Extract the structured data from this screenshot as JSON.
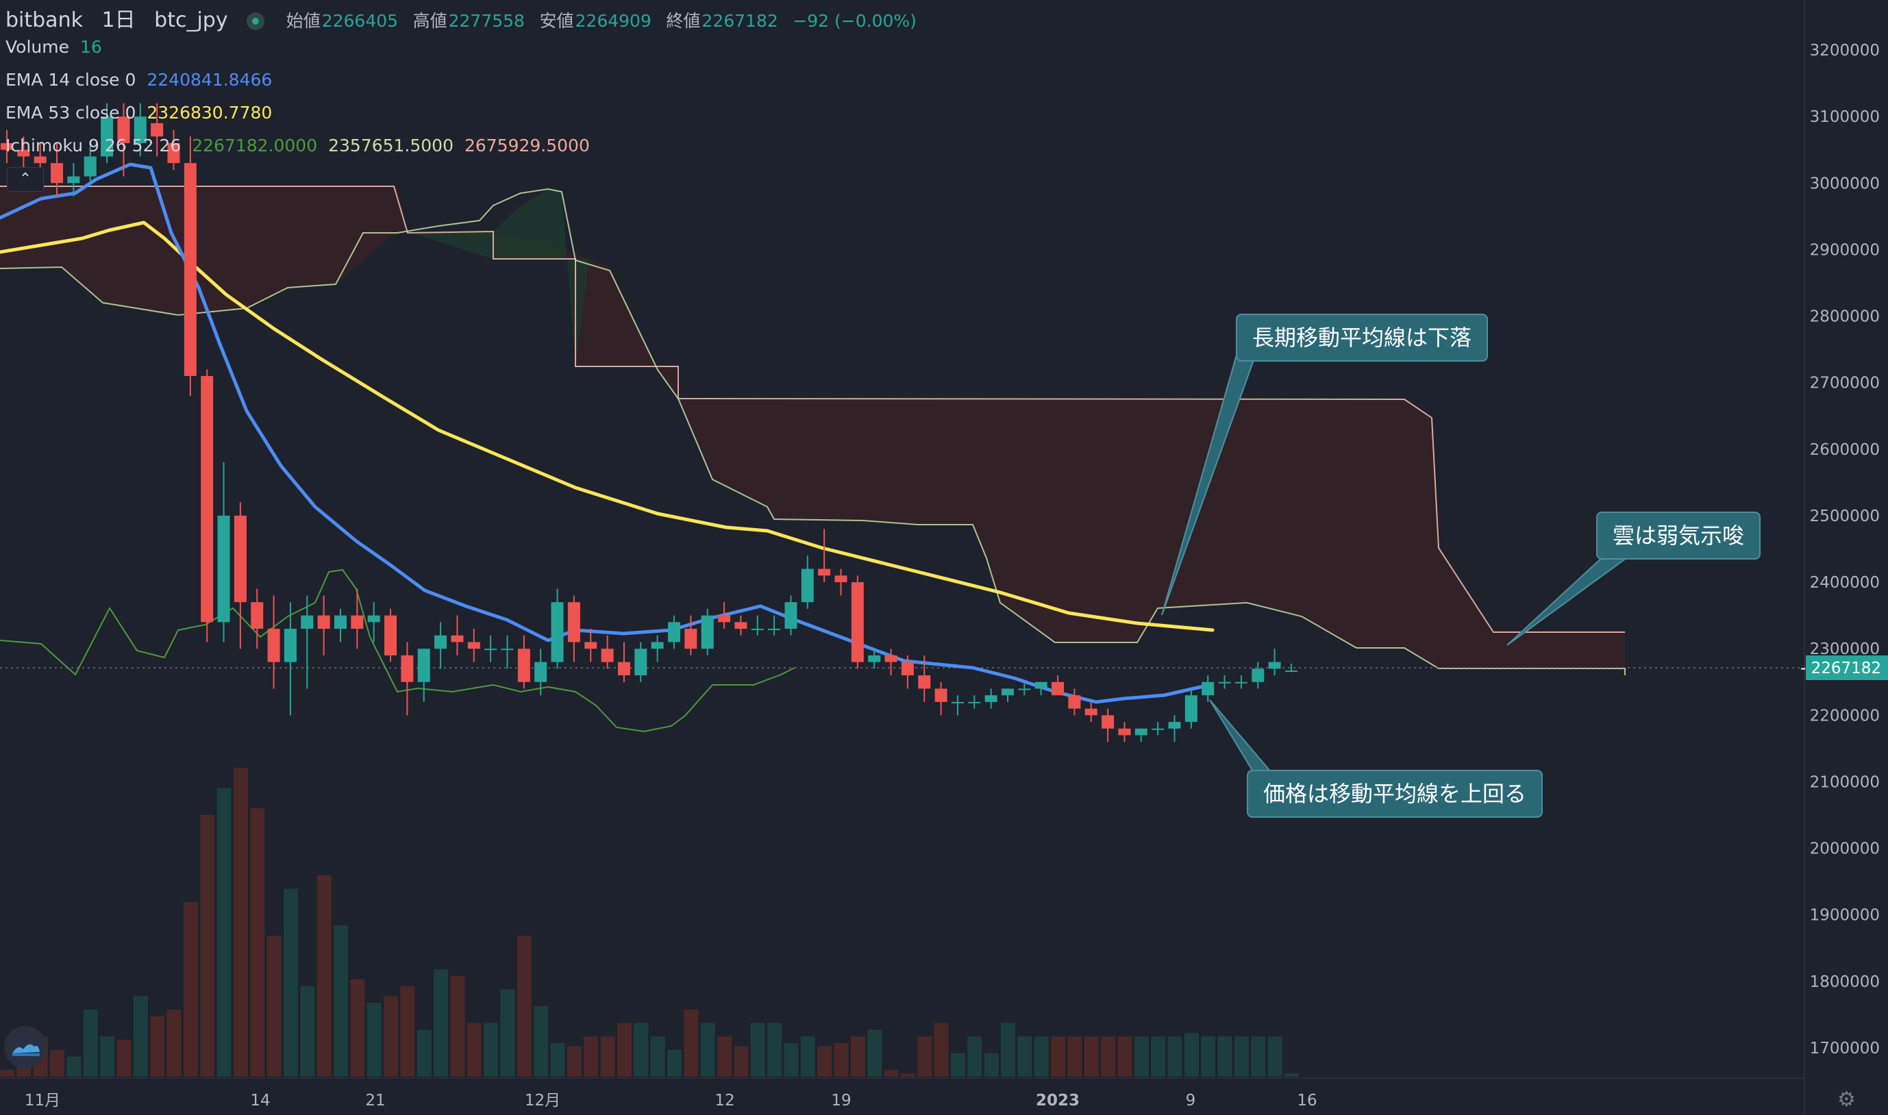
{
  "header": {
    "exchange": "bitbank",
    "interval": "1日",
    "symbol": "btc_jpy",
    "open_label": "始値",
    "open": "2266405",
    "high_label": "高値",
    "high": "2277558",
    "low_label": "安値",
    "low": "2264909",
    "close_label": "終値",
    "close": "2267182",
    "change": "−92 (−0.00%)"
  },
  "indicators": {
    "volume": {
      "label": "Volume",
      "value": "16"
    },
    "ema14": {
      "label": "EMA 14 close 0",
      "value": "2240841.8466",
      "color": "#4d8cf5"
    },
    "ema53": {
      "label": "EMA 53 close 0",
      "value": "2326830.7780",
      "color": "#fde65a"
    },
    "ichimoku": {
      "label": "Ichimoku 9 26 52 26",
      "v1": "2267182.0000",
      "v2": "2357651.5000",
      "v3": "2675929.5000"
    }
  },
  "annotations": {
    "long_ma": "長期移動平均線は下落",
    "cloud": "雲は弱気示唆",
    "price_above": "価格は移動平均線を上回る"
  },
  "price_tag": "2267182",
  "collapse_glyph": "⌃",
  "gear_glyph": "⚙",
  "colors": {
    "up": "#26a69a",
    "down": "#ef5350",
    "bg": "#1e222d",
    "callout": "#2b6876",
    "chikou": "#4c9b3f",
    "span_a": "#c5e1a5",
    "span_b": "#f0b6a8"
  },
  "chart_data": {
    "type": "candlestick",
    "x_ticks": [
      "11月",
      "14",
      "21",
      "12月",
      "12",
      "19",
      "2023",
      "9",
      "16"
    ],
    "y_ticks": [
      3200000,
      3100000,
      3000000,
      2900000,
      2800000,
      2700000,
      2600000,
      2500000,
      2400000,
      2300000,
      2200000,
      2100000,
      2000000,
      1900000,
      1800000,
      1700000
    ],
    "y_range": [
      1650000,
      3300000
    ],
    "candles": [
      [
        3060000,
        3080000,
        3030000,
        3050000
      ],
      [
        3050000,
        3070000,
        3000000,
        3040000
      ],
      [
        3040000,
        3060000,
        3020000,
        3030000
      ],
      [
        3030000,
        3060000,
        2980000,
        3000000
      ],
      [
        3000000,
        3030000,
        2980000,
        3010000
      ],
      [
        3010000,
        3060000,
        3000000,
        3040000
      ],
      [
        3040000,
        3120000,
        3030000,
        3100000
      ],
      [
        3100000,
        3120000,
        3010000,
        3060000
      ],
      [
        3060000,
        3120000,
        3040000,
        3100000
      ],
      [
        3090000,
        3120000,
        3040000,
        3070000
      ],
      [
        3060000,
        3080000,
        3020000,
        3030000
      ],
      [
        3030000,
        3070000,
        2680000,
        2710000
      ],
      [
        2710000,
        2720000,
        2310000,
        2340000
      ],
      [
        2340000,
        2580000,
        2310000,
        2500000
      ],
      [
        2500000,
        2520000,
        2300000,
        2370000
      ],
      [
        2370000,
        2390000,
        2300000,
        2330000
      ],
      [
        2330000,
        2380000,
        2240000,
        2280000
      ],
      [
        2280000,
        2370000,
        2200000,
        2330000
      ],
      [
        2330000,
        2380000,
        2240000,
        2350000
      ],
      [
        2350000,
        2380000,
        2290000,
        2330000
      ],
      [
        2330000,
        2360000,
        2310000,
        2350000
      ],
      [
        2350000,
        2390000,
        2300000,
        2330000
      ],
      [
        2340000,
        2370000,
        2310000,
        2350000
      ],
      [
        2350000,
        2360000,
        2280000,
        2290000
      ],
      [
        2290000,
        2310000,
        2200000,
        2250000
      ],
      [
        2250000,
        2300000,
        2220000,
        2300000
      ],
      [
        2300000,
        2340000,
        2270000,
        2320000
      ],
      [
        2320000,
        2350000,
        2290000,
        2310000
      ],
      [
        2310000,
        2330000,
        2280000,
        2300000
      ],
      [
        2300000,
        2320000,
        2280000,
        2300000
      ],
      [
        2300000,
        2320000,
        2270000,
        2300000
      ],
      [
        2300000,
        2320000,
        2240000,
        2250000
      ],
      [
        2250000,
        2300000,
        2230000,
        2280000
      ],
      [
        2280000,
        2390000,
        2270000,
        2370000
      ],
      [
        2370000,
        2380000,
        2280000,
        2310000
      ],
      [
        2310000,
        2330000,
        2280000,
        2300000
      ],
      [
        2300000,
        2320000,
        2270000,
        2280000
      ],
      [
        2280000,
        2310000,
        2250000,
        2260000
      ],
      [
        2260000,
        2310000,
        2250000,
        2300000
      ],
      [
        2300000,
        2320000,
        2280000,
        2310000
      ],
      [
        2310000,
        2350000,
        2300000,
        2340000
      ],
      [
        2330000,
        2350000,
        2290000,
        2300000
      ],
      [
        2300000,
        2360000,
        2290000,
        2350000
      ],
      [
        2350000,
        2370000,
        2330000,
        2340000
      ],
      [
        2340000,
        2350000,
        2320000,
        2330000
      ],
      [
        2330000,
        2350000,
        2320000,
        2330000
      ],
      [
        2330000,
        2350000,
        2320000,
        2330000
      ],
      [
        2330000,
        2380000,
        2320000,
        2370000
      ],
      [
        2370000,
        2440000,
        2360000,
        2420000
      ],
      [
        2420000,
        2480000,
        2400000,
        2410000
      ],
      [
        2410000,
        2420000,
        2380000,
        2400000
      ],
      [
        2400000,
        2410000,
        2270000,
        2280000
      ],
      [
        2280000,
        2300000,
        2270000,
        2290000
      ],
      [
        2290000,
        2300000,
        2260000,
        2280000
      ],
      [
        2280000,
        2290000,
        2240000,
        2260000
      ],
      [
        2260000,
        2290000,
        2220000,
        2240000
      ],
      [
        2240000,
        2250000,
        2200000,
        2220000
      ],
      [
        2220000,
        2230000,
        2200000,
        2220000
      ],
      [
        2220000,
        2230000,
        2210000,
        2220000
      ],
      [
        2220000,
        2240000,
        2210000,
        2230000
      ],
      [
        2230000,
        2240000,
        2220000,
        2240000
      ],
      [
        2240000,
        2250000,
        2230000,
        2240000
      ],
      [
        2240000,
        2250000,
        2230000,
        2250000
      ],
      [
        2250000,
        2260000,
        2230000,
        2230000
      ],
      [
        2230000,
        2240000,
        2200000,
        2210000
      ],
      [
        2210000,
        2220000,
        2190000,
        2200000
      ],
      [
        2200000,
        2210000,
        2160000,
        2180000
      ],
      [
        2180000,
        2190000,
        2160000,
        2170000
      ],
      [
        2170000,
        2180000,
        2160000,
        2180000
      ],
      [
        2180000,
        2190000,
        2170000,
        2180000
      ],
      [
        2180000,
        2200000,
        2160000,
        2190000
      ],
      [
        2190000,
        2240000,
        2180000,
        2230000
      ],
      [
        2230000,
        2260000,
        2220000,
        2250000
      ],
      [
        2250000,
        2260000,
        2240000,
        2250000
      ],
      [
        2250000,
        2260000,
        2240000,
        2250000
      ],
      [
        2250000,
        2280000,
        2240000,
        2270000
      ],
      [
        2270000,
        2300000,
        2260000,
        2280000
      ],
      [
        2266405,
        2277558,
        2264909,
        2267182
      ]
    ],
    "volume": [
      10,
      18,
      60,
      40,
      30,
      100,
      60,
      55,
      120,
      90,
      100,
      260,
      390,
      430,
      460,
      400,
      210,
      280,
      135,
      300,
      225,
      145,
      110,
      120,
      135,
      70,
      160,
      150,
      80,
      80,
      130,
      210,
      105,
      50,
      45,
      60,
      60,
      80,
      80,
      60,
      40,
      100,
      80,
      60,
      45,
      80,
      80,
      50,
      60,
      45,
      50,
      60,
      70,
      10,
      5,
      60,
      80,
      35,
      60,
      35,
      80,
      60,
      60,
      60,
      60,
      60,
      60,
      60,
      60,
      60,
      60,
      65,
      60,
      60,
      60,
      60,
      60,
      5
    ]
  }
}
